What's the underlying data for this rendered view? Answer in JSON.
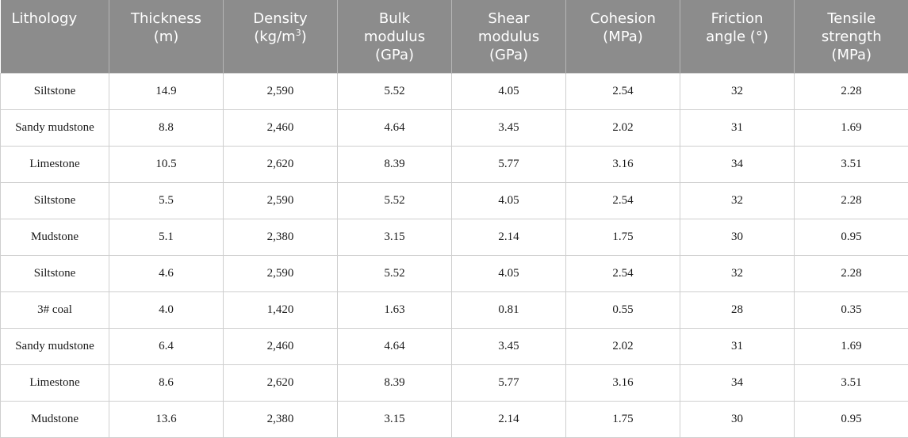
{
  "headers": [
    {
      "lines": [
        "Lithology"
      ]
    },
    {
      "lines": [
        "Thickness",
        "(m)"
      ]
    },
    {
      "lines": [
        "Density",
        "(kg/m"
      ],
      "sup": "3",
      "after": ")"
    },
    {
      "lines": [
        "Bulk",
        "modulus",
        "(GPa)"
      ]
    },
    {
      "lines": [
        "Shear",
        "modulus",
        "(GPa)"
      ]
    },
    {
      "lines": [
        "Cohesion",
        "(MPa)"
      ]
    },
    {
      "lines": [
        "Friction",
        "angle (°)"
      ]
    },
    {
      "lines": [
        "Tensile",
        "strength",
        "(MPa)"
      ]
    }
  ],
  "rows": [
    [
      "Siltstone",
      "14.9",
      "2,590",
      "5.52",
      "4.05",
      "2.54",
      "32",
      "2.28"
    ],
    [
      "Sandy mudstone",
      "8.8",
      "2,460",
      "4.64",
      "3.45",
      "2.02",
      "31",
      "1.69"
    ],
    [
      "Limestone",
      "10.5",
      "2,620",
      "8.39",
      "5.77",
      "3.16",
      "34",
      "3.51"
    ],
    [
      "Siltstone",
      "5.5",
      "2,590",
      "5.52",
      "4.05",
      "2.54",
      "32",
      "2.28"
    ],
    [
      "Mudstone",
      "5.1",
      "2,380",
      "3.15",
      "2.14",
      "1.75",
      "30",
      "0.95"
    ],
    [
      "Siltstone",
      "4.6",
      "2,590",
      "5.52",
      "4.05",
      "2.54",
      "32",
      "2.28"
    ],
    [
      "3# coal",
      "4.0",
      "1,420",
      "1.63",
      "0.81",
      "0.55",
      "28",
      "0.35"
    ],
    [
      "Sandy mudstone",
      "6.4",
      "2,460",
      "4.64",
      "3.45",
      "2.02",
      "31",
      "1.69"
    ],
    [
      "Limestone",
      "8.6",
      "2,620",
      "8.39",
      "5.77",
      "3.16",
      "34",
      "3.51"
    ],
    [
      "Mudstone",
      "13.6",
      "2,380",
      "3.15",
      "2.14",
      "1.75",
      "30",
      "0.95"
    ]
  ]
}
